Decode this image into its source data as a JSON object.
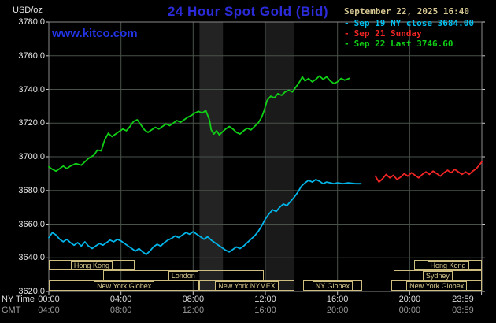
{
  "header": {
    "unit_label": "USD/oz",
    "title": "24 Hour Spot Gold (Bid)",
    "datetime": "September 22, 2025 16:40",
    "watermark": "www.kitco.com",
    "legend": [
      {
        "marker": "-",
        "label": "Sep 19 NY close 3684.00",
        "color": "#00c0f0"
      },
      {
        "marker": "-",
        "label": "Sep 21 Sunday",
        "color": "#f22525"
      },
      {
        "marker": "-",
        "label": "Sep 22 Last 3746.60",
        "color": "#10d015"
      }
    ]
  },
  "axes": {
    "ny_row_label": "NY Time",
    "gmt_row_label": "GMT"
  },
  "chart_data": {
    "type": "line",
    "title": "24 Hour Spot Gold (Bid)",
    "ylabel": "USD/oz",
    "ylim": [
      3620,
      3780
    ],
    "x_range": [
      0,
      24
    ],
    "grid": true,
    "grid_color": "#49524a",
    "frame_color": "#8a8a8a",
    "tick_color": "#cccccc",
    "y_labels": [
      "3780.0",
      "3760.0",
      "3740.0",
      "3720.0",
      "3700.0",
      "3680.0",
      "3660.0",
      "3640.0",
      "3620.0"
    ],
    "y_grid": [
      3640,
      3660,
      3680,
      3700,
      3720,
      3740,
      3760
    ],
    "x_grid_hours": [
      4,
      8,
      12,
      16,
      20
    ],
    "x_ticks": [
      {
        "h": 0,
        "ny": "00:00",
        "gmt": "04:00"
      },
      {
        "h": 4,
        "ny": "04:00",
        "gmt": "08:00"
      },
      {
        "h": 8,
        "ny": "08:00",
        "gmt": "12:00"
      },
      {
        "h": 12,
        "ny": "12:00",
        "gmt": "16:00"
      },
      {
        "h": 16,
        "ny": "16:00",
        "gmt": "20:00"
      },
      {
        "h": 20,
        "ny": "20:00",
        "gmt": "00:00"
      },
      {
        "h": 23.983,
        "lh": 22.95,
        "ny": "23:59",
        "gmt": "03:59"
      }
    ],
    "bands": [
      {
        "from": 8.35,
        "to": 9.65,
        "color": "#232323"
      },
      {
        "from": 11.95,
        "to": 13.6,
        "color": "#1a1a1a"
      }
    ],
    "series": [
      {
        "name": "Sep 19 NY close",
        "close": 3684.0,
        "color": "#00b4e8",
        "points": [
          [
            0,
            3652
          ],
          [
            0.2,
            3655
          ],
          [
            0.4,
            3653.5
          ],
          [
            0.6,
            3651
          ],
          [
            0.8,
            3649.5
          ],
          [
            1,
            3651
          ],
          [
            1.2,
            3649
          ],
          [
            1.4,
            3647.5
          ],
          [
            1.6,
            3649
          ],
          [
            1.8,
            3647
          ],
          [
            2,
            3649.5
          ],
          [
            2.2,
            3647
          ],
          [
            2.4,
            3645.5
          ],
          [
            2.6,
            3647
          ],
          [
            2.8,
            3648.5
          ],
          [
            3,
            3647.5
          ],
          [
            3.2,
            3649
          ],
          [
            3.4,
            3650.5
          ],
          [
            3.6,
            3649.5
          ],
          [
            3.8,
            3651
          ],
          [
            4,
            3650
          ],
          [
            4.2,
            3648.5
          ],
          [
            4.4,
            3647
          ],
          [
            4.6,
            3645.5
          ],
          [
            4.8,
            3644
          ],
          [
            5,
            3645.5
          ],
          [
            5.2,
            3643.5
          ],
          [
            5.4,
            3642
          ],
          [
            5.6,
            3644
          ],
          [
            5.8,
            3646.5
          ],
          [
            6,
            3648
          ],
          [
            6.2,
            3647
          ],
          [
            6.4,
            3649
          ],
          [
            6.6,
            3650.5
          ],
          [
            6.8,
            3651.5
          ],
          [
            7,
            3653
          ],
          [
            7.2,
            3652
          ],
          [
            7.4,
            3653.5
          ],
          [
            7.6,
            3655
          ],
          [
            7.8,
            3654
          ],
          [
            8,
            3655.5
          ],
          [
            8.2,
            3654
          ],
          [
            8.4,
            3652.5
          ],
          [
            8.6,
            3651
          ],
          [
            8.8,
            3652.5
          ],
          [
            9,
            3650.5
          ],
          [
            9.2,
            3649
          ],
          [
            9.4,
            3647.5
          ],
          [
            9.6,
            3646
          ],
          [
            9.8,
            3644.5
          ],
          [
            10,
            3643.5
          ],
          [
            10.2,
            3645
          ],
          [
            10.4,
            3646.5
          ],
          [
            10.6,
            3645.5
          ],
          [
            10.8,
            3647
          ],
          [
            11,
            3649
          ],
          [
            11.2,
            3651
          ],
          [
            11.4,
            3653
          ],
          [
            11.6,
            3655.5
          ],
          [
            11.8,
            3659
          ],
          [
            12,
            3663
          ],
          [
            12.2,
            3666
          ],
          [
            12.4,
            3668.5
          ],
          [
            12.6,
            3667.5
          ],
          [
            12.8,
            3670
          ],
          [
            13,
            3672
          ],
          [
            13.2,
            3671
          ],
          [
            13.4,
            3673.5
          ],
          [
            13.6,
            3676
          ],
          [
            13.8,
            3679
          ],
          [
            14,
            3682.5
          ],
          [
            14.2,
            3684.5
          ],
          [
            14.4,
            3686
          ],
          [
            14.6,
            3685
          ],
          [
            14.8,
            3686.5
          ],
          [
            15,
            3685.5
          ],
          [
            15.2,
            3684
          ],
          [
            15.4,
            3685
          ],
          [
            15.6,
            3684.5
          ],
          [
            15.8,
            3684
          ],
          [
            16,
            3684.5
          ],
          [
            16.3,
            3684
          ],
          [
            16.6,
            3684.5
          ],
          [
            17,
            3684
          ],
          [
            17.3,
            3684
          ]
        ]
      },
      {
        "name": "Sep 21 Sunday",
        "color": "#f22525",
        "points": [
          [
            18.1,
            3688.5
          ],
          [
            18.3,
            3685
          ],
          [
            18.5,
            3687
          ],
          [
            18.7,
            3689.5
          ],
          [
            18.9,
            3687.5
          ],
          [
            19.1,
            3689
          ],
          [
            19.3,
            3686.5
          ],
          [
            19.5,
            3688
          ],
          [
            19.7,
            3690
          ],
          [
            19.9,
            3688.5
          ],
          [
            20.1,
            3690.5
          ],
          [
            20.3,
            3689
          ],
          [
            20.5,
            3687.5
          ],
          [
            20.7,
            3689.5
          ],
          [
            20.9,
            3691
          ],
          [
            21.1,
            3689.5
          ],
          [
            21.3,
            3691.5
          ],
          [
            21.5,
            3690
          ],
          [
            21.7,
            3688.5
          ],
          [
            21.9,
            3690.5
          ],
          [
            22.1,
            3692
          ],
          [
            22.3,
            3690.5
          ],
          [
            22.5,
            3692.5
          ],
          [
            22.7,
            3691
          ],
          [
            22.9,
            3689.5
          ],
          [
            23.1,
            3691
          ],
          [
            23.3,
            3689.5
          ],
          [
            23.5,
            3691.5
          ],
          [
            23.7,
            3693
          ],
          [
            23.85,
            3695
          ],
          [
            24,
            3697
          ]
        ]
      },
      {
        "name": "Sep 22 Last",
        "last": 3746.6,
        "color": "#10d015",
        "points": [
          [
            0,
            3694
          ],
          [
            0.2,
            3692.5
          ],
          [
            0.4,
            3691.5
          ],
          [
            0.6,
            3693
          ],
          [
            0.8,
            3694.5
          ],
          [
            1,
            3693
          ],
          [
            1.2,
            3694.5
          ],
          [
            1.5,
            3696
          ],
          [
            1.8,
            3695
          ],
          [
            2,
            3697
          ],
          [
            2.2,
            3699
          ],
          [
            2.5,
            3701
          ],
          [
            2.7,
            3704
          ],
          [
            2.9,
            3703.5
          ],
          [
            3.1,
            3710
          ],
          [
            3.3,
            3714
          ],
          [
            3.5,
            3712
          ],
          [
            3.7,
            3713.5
          ],
          [
            3.9,
            3715
          ],
          [
            4.1,
            3716.5
          ],
          [
            4.3,
            3715.5
          ],
          [
            4.5,
            3718
          ],
          [
            4.7,
            3721
          ],
          [
            4.9,
            3722
          ],
          [
            5.1,
            3719
          ],
          [
            5.3,
            3716
          ],
          [
            5.5,
            3714.5
          ],
          [
            5.7,
            3716
          ],
          [
            5.9,
            3717.5
          ],
          [
            6.1,
            3716.5
          ],
          [
            6.3,
            3718
          ],
          [
            6.5,
            3719.5
          ],
          [
            6.7,
            3718.5
          ],
          [
            6.9,
            3720
          ],
          [
            7.1,
            3721.5
          ],
          [
            7.3,
            3720.5
          ],
          [
            7.5,
            3722
          ],
          [
            7.7,
            3723.5
          ],
          [
            7.9,
            3724.5
          ],
          [
            8.1,
            3726
          ],
          [
            8.3,
            3727
          ],
          [
            8.5,
            3726
          ],
          [
            8.7,
            3727.5
          ],
          [
            8.9,
            3722
          ],
          [
            9,
            3716
          ],
          [
            9.15,
            3713.5
          ],
          [
            9.3,
            3715.5
          ],
          [
            9.45,
            3713
          ],
          [
            9.6,
            3714.5
          ],
          [
            9.8,
            3716.5
          ],
          [
            10,
            3718
          ],
          [
            10.2,
            3716.5
          ],
          [
            10.4,
            3714.5
          ],
          [
            10.6,
            3713.5
          ],
          [
            10.8,
            3715.5
          ],
          [
            11,
            3717
          ],
          [
            11.2,
            3716
          ],
          [
            11.4,
            3718
          ],
          [
            11.6,
            3720
          ],
          [
            11.8,
            3723.5
          ],
          [
            11.95,
            3728
          ],
          [
            12.1,
            3733.5
          ],
          [
            12.3,
            3736
          ],
          [
            12.5,
            3735
          ],
          [
            12.7,
            3737.5
          ],
          [
            12.9,
            3736.5
          ],
          [
            13.1,
            3738.5
          ],
          [
            13.3,
            3739.5
          ],
          [
            13.5,
            3738.5
          ],
          [
            13.7,
            3741.5
          ],
          [
            13.9,
            3744.5
          ],
          [
            14.05,
            3747.5
          ],
          [
            14.2,
            3745
          ],
          [
            14.4,
            3746.5
          ],
          [
            14.6,
            3744.5
          ],
          [
            14.8,
            3746
          ],
          [
            15,
            3748
          ],
          [
            15.2,
            3746
          ],
          [
            15.4,
            3747.5
          ],
          [
            15.6,
            3745
          ],
          [
            15.8,
            3743.5
          ],
          [
            16,
            3744.5
          ],
          [
            16.2,
            3746.5
          ],
          [
            16.4,
            3745.5
          ],
          [
            16.67,
            3746.6
          ]
        ]
      }
    ],
    "sessions": [
      {
        "row": 0,
        "start_h": 0,
        "end_h": 4.75,
        "label": "Hong Kong"
      },
      {
        "row": 0,
        "start_h": 20.25,
        "end_h": 24,
        "label": "Hong Kong"
      },
      {
        "row": 1,
        "start_h": 3.0,
        "end_h": 11.9,
        "label": "London"
      },
      {
        "row": 1,
        "start_h": 19.1,
        "end_h": 24,
        "label": "Sydney"
      },
      {
        "row": 2,
        "start_h": 0,
        "end_h": 8.35,
        "label": "New York Globex"
      },
      {
        "row": 2,
        "start_h": 8.35,
        "end_h": 13.6,
        "label": "New York NYMEX"
      },
      {
        "row": 2,
        "start_h": 14.1,
        "end_h": 17.35,
        "label": "NY Globex"
      },
      {
        "row": 2,
        "start_h": 19.0,
        "end_h": 24,
        "label": "New York Globex"
      }
    ]
  }
}
